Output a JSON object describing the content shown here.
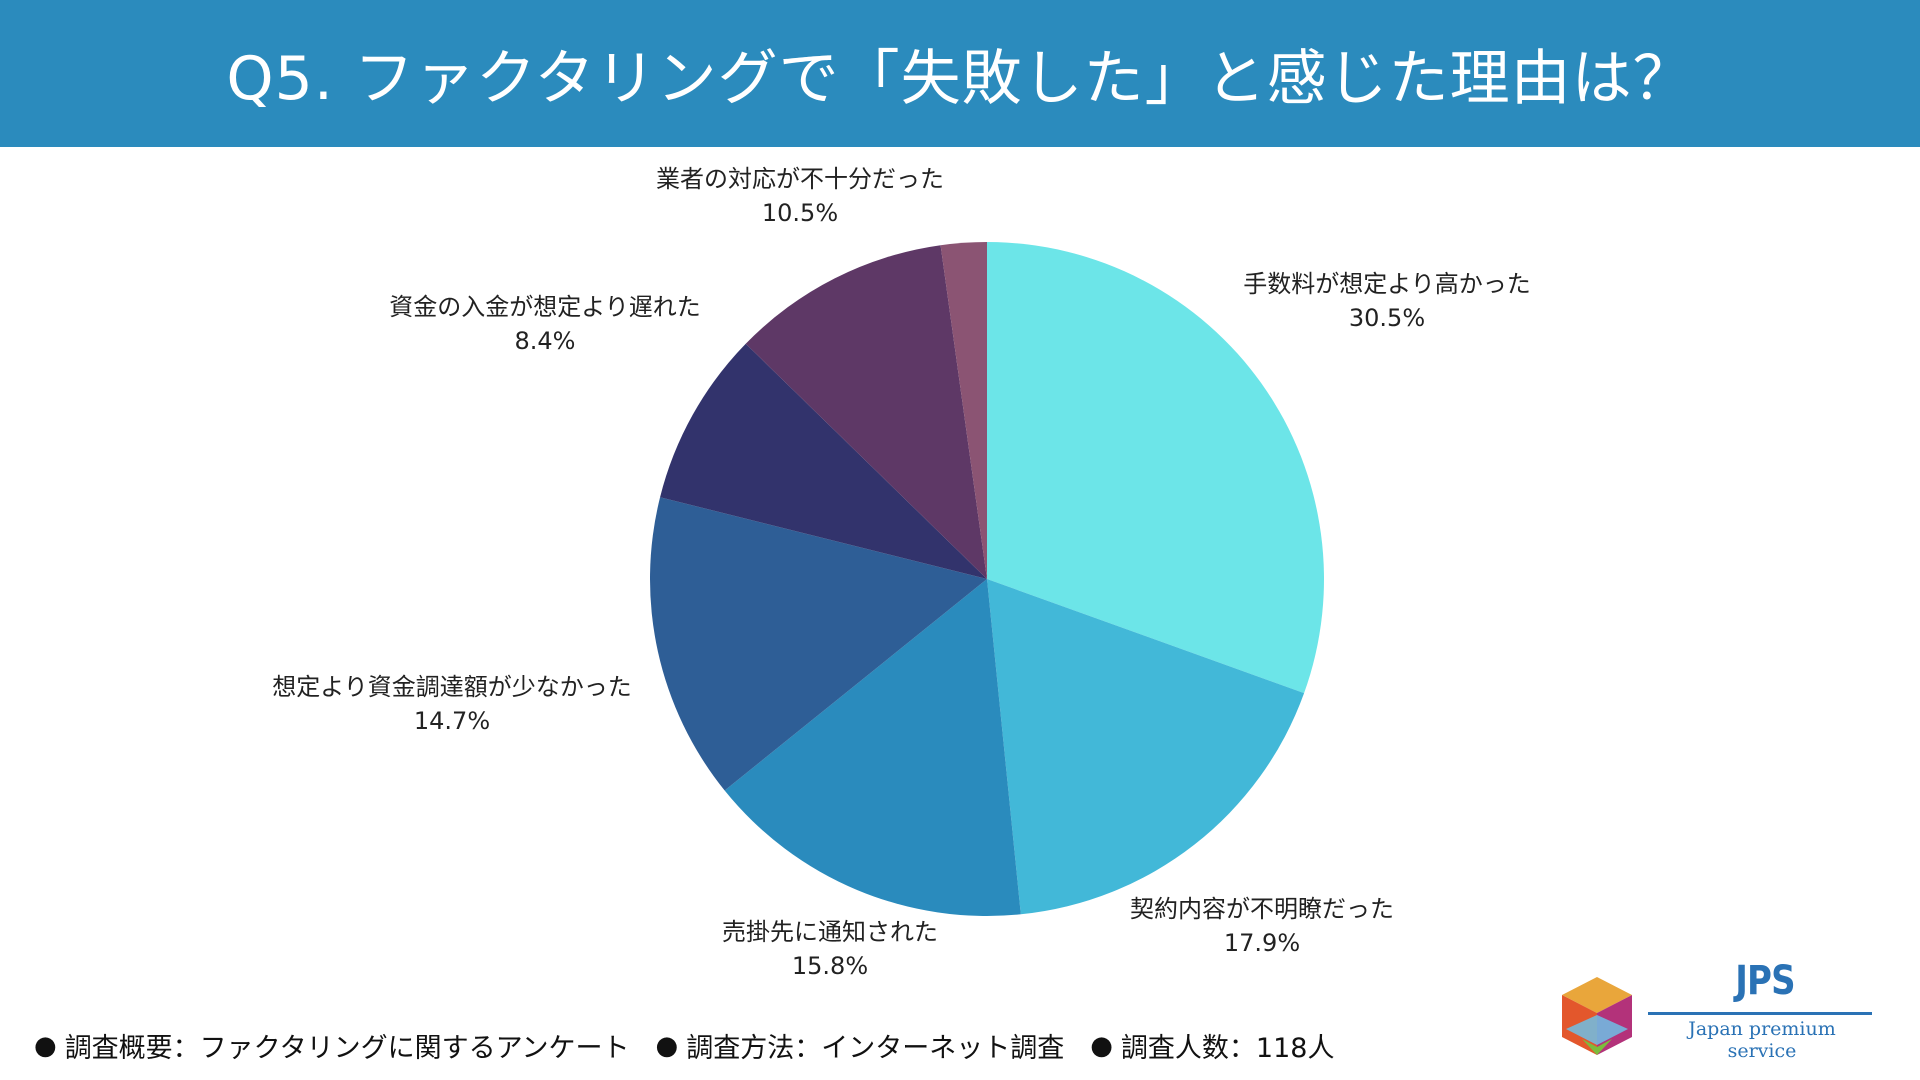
{
  "header": {
    "title": "Q5. ファクタリングで「失敗した」と感じた理由は？",
    "background": "#2b8bbd"
  },
  "chart_data": {
    "type": "pie",
    "start_angle": "12 o'clock, clockwise",
    "slices": [
      {
        "label": "手数料が想定より高かった",
        "value": 30.5,
        "value_label": "30.5%",
        "color": "#6ce5e8"
      },
      {
        "label": "契約内容が不明瞭だった",
        "value": 17.9,
        "value_label": "17.9%",
        "color": "#42b8d8"
      },
      {
        "label": "売掛先に通知された",
        "value": 15.8,
        "value_label": "15.8%",
        "color": "#2a8bbd"
      },
      {
        "label": "想定より資金調達額が少なかった",
        "value": 14.7,
        "value_label": "14.7%",
        "color": "#2e5e96"
      },
      {
        "label": "資金の入金が想定より遅れた",
        "value": 8.4,
        "value_label": "8.4%",
        "color": "#32336c"
      },
      {
        "label": "業者の対応が不十分だった",
        "value": 10.5,
        "value_label": "10.5%",
        "color": "#5e3866"
      },
      {
        "label": "",
        "value": 2.2,
        "value_label": "",
        "color": "#8b5473"
      }
    ]
  },
  "footer": {
    "items": [
      {
        "dot": "●",
        "text": "調査概要：ファクタリングに関するアンケート"
      },
      {
        "dot": "●",
        "text": "調査方法：インターネット調査"
      },
      {
        "dot": "●",
        "text": "調査人数：118人"
      }
    ]
  },
  "logo": {
    "mark": "JPS",
    "subtitle": "Japan premium service"
  }
}
